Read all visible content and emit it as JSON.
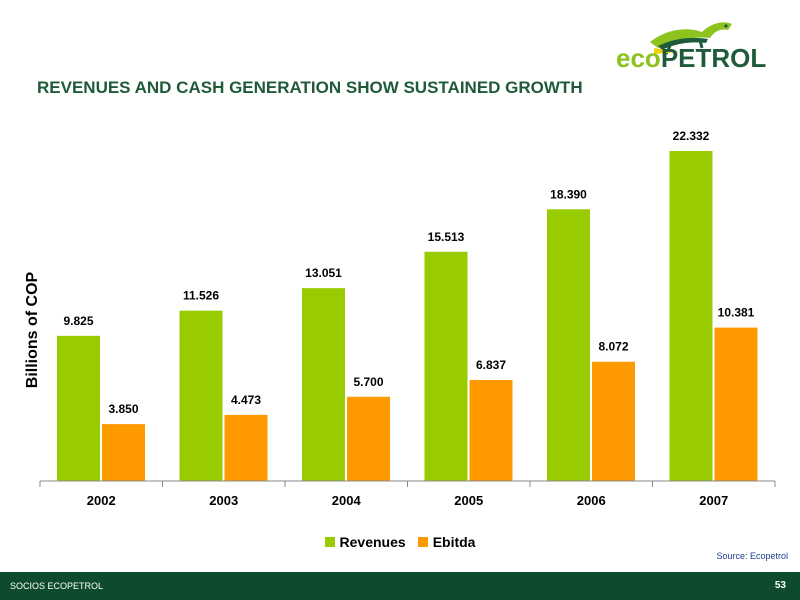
{
  "slide": {
    "title": "REVENUES AND CASH GENERATION SHOW SUSTAINED GROWTH",
    "source": "Source: Ecopetrol",
    "footer_left": "SOCIOS ECOPETROL",
    "page_number": "53"
  },
  "logo": {
    "text": "ecoPETROL",
    "colors": {
      "green": "#8ec31f",
      "dark_green": "#1f5b3b",
      "yellow": "#f2d100"
    }
  },
  "chart_data": {
    "type": "bar",
    "categories": [
      "2002",
      "2003",
      "2004",
      "2005",
      "2006",
      "2007"
    ],
    "series": [
      {
        "name": "Revenues",
        "values": [
          9825,
          11526,
          13051,
          15513,
          18390,
          22332
        ],
        "labels": [
          "9.825",
          "11.526",
          "13.051",
          "15.513",
          "18.390",
          "22.332"
        ],
        "color": "#99cc00"
      },
      {
        "name": "Ebitda",
        "values": [
          3850,
          4473,
          5700,
          6837,
          8072,
          10381
        ],
        "labels": [
          "3.850",
          "4.473",
          "5.700",
          "6.837",
          "8.072",
          "10.381"
        ],
        "color": "#ff9900"
      }
    ],
    "ylabel": "Billions of COP",
    "xlabel": "",
    "ylim": [
      0,
      22332
    ],
    "legend": "bottom",
    "grid": false
  }
}
